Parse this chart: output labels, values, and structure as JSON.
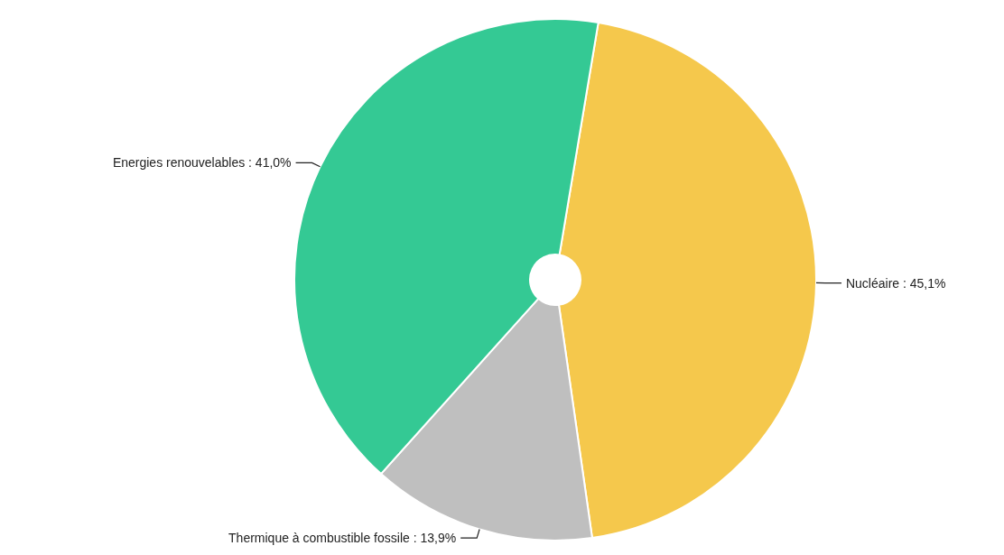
{
  "chart_data": {
    "type": "pie",
    "categories": [
      "Nucléaire",
      "Thermique à combustible fossile",
      "Energies renouvelables"
    ],
    "values": [
      45.1,
      13.9,
      41.0
    ],
    "value_labels": [
      "45,1%",
      "13,9%",
      "41,0%"
    ],
    "colors": [
      "#f5c84c",
      "#bfbfbf",
      "#34c994"
    ]
  }
}
